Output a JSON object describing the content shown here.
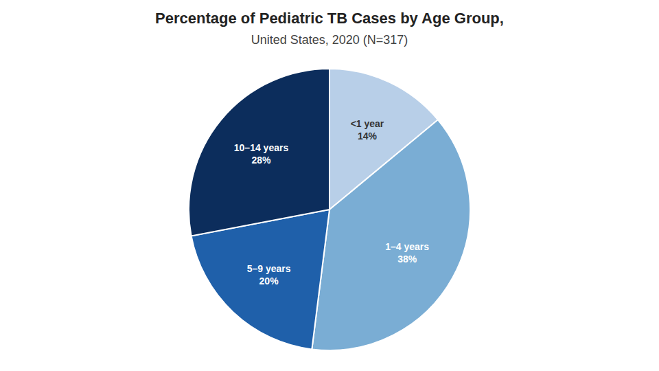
{
  "chart_data": {
    "type": "pie",
    "title": "Percentage of Pediatric TB Cases by Age Group,",
    "subtitle": "United States, 2020 (N=317)",
    "categories": [
      "<1 year",
      "1–4 years",
      "5–9 years",
      "10–14 years"
    ],
    "values": [
      14,
      38,
      20,
      28
    ],
    "value_labels": [
      "14%",
      "38%",
      "20%",
      "28%"
    ],
    "colors": [
      "#b8cfe8",
      "#7aadd4",
      "#1f60aa",
      "#0c2d5c"
    ],
    "data_labels": true
  }
}
